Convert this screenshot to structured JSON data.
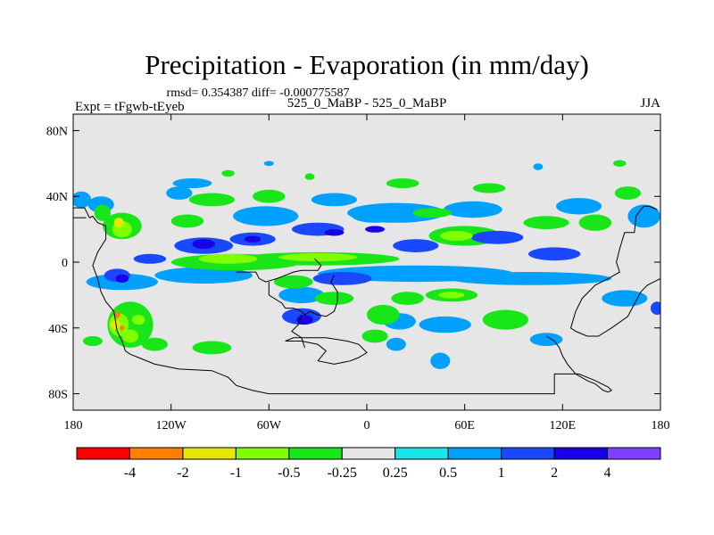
{
  "chart_data": {
    "type": "heatmap",
    "title": "Precipitation - Evaporation (in mm/day)",
    "subtitle": "rmsd= 0.354387 diff= -0.000775587",
    "left_label": "Expt = tFgwb-tEyeb",
    "center_label": "525_0_MaBP - 525_0_MaBP",
    "right_label": "JJA",
    "x_axis": {
      "range": [
        -180,
        180
      ],
      "ticks": [
        -180,
        -120,
        -60,
        0,
        60,
        120,
        180
      ],
      "tick_labels": [
        "180",
        "120W",
        "60W",
        "0",
        "60E",
        "120E",
        "180"
      ]
    },
    "y_axis": {
      "range": [
        -90,
        90
      ],
      "ticks": [
        80,
        40,
        0,
        -40,
        -80
      ],
      "tick_labels": [
        "80N",
        "40N",
        "0",
        "40S",
        "80S"
      ]
    },
    "colorbar": {
      "colors": [
        "#ff0000",
        "#ff8000",
        "#e6e600",
        "#80ff00",
        "#19e619",
        "#e6e6e6",
        "#19e6e6",
        "#00a0ff",
        "#1a48ff",
        "#1a00e6",
        "#8040ff"
      ],
      "labels": [
        "-4",
        "-2",
        "-1",
        "-0.5",
        "-0.25",
        "0.25",
        "0.5",
        "1",
        "2",
        "4"
      ]
    },
    "background_color": "#e6e6e6",
    "features": [
      {
        "level": 7,
        "lon": -175,
        "lat": 38,
        "dlon": 6,
        "dlat": 5
      },
      {
        "level": 7,
        "lon": -163,
        "lat": 35,
        "dlon": 8,
        "dlat": 5
      },
      {
        "level": 7,
        "lon": -115,
        "lat": 42,
        "dlon": 8,
        "dlat": 4
      },
      {
        "level": 7,
        "lon": -107,
        "lat": 48,
        "dlon": 12,
        "dlat": 3
      },
      {
        "level": 7,
        "lon": -62,
        "lat": 28,
        "dlon": 20,
        "dlat": 6
      },
      {
        "level": 7,
        "lon": -20,
        "lat": 38,
        "dlon": 14,
        "dlat": 4
      },
      {
        "level": 7,
        "lon": 18,
        "lat": 30,
        "dlon": 30,
        "dlat": 6
      },
      {
        "level": 7,
        "lon": 65,
        "lat": 32,
        "dlon": 18,
        "dlat": 5
      },
      {
        "level": 7,
        "lon": 130,
        "lat": 34,
        "dlon": 14,
        "dlat": 5
      },
      {
        "level": 7,
        "lon": 170,
        "lat": 28,
        "dlon": 10,
        "dlat": 7
      },
      {
        "level": 7,
        "lon": 5,
        "lat": 28,
        "dlon": 14,
        "dlat": 4
      },
      {
        "level": 7,
        "lon": -150,
        "lat": -12,
        "dlon": 22,
        "dlat": 5
      },
      {
        "level": 7,
        "lon": -100,
        "lat": -8,
        "dlon": 30,
        "dlat": 5
      },
      {
        "level": 7,
        "lon": -40,
        "lat": -20,
        "dlon": 14,
        "dlat": 5
      },
      {
        "level": 7,
        "lon": 30,
        "lat": -7,
        "dlon": 60,
        "dlat": 5
      },
      {
        "level": 7,
        "lon": 100,
        "lat": -10,
        "dlon": 50,
        "dlat": 4
      },
      {
        "level": 7,
        "lon": 158,
        "lat": -22,
        "dlon": 14,
        "dlat": 5
      },
      {
        "level": 7,
        "lon": -152,
        "lat": -35,
        "dlon": 6,
        "dlat": 4
      },
      {
        "level": 7,
        "lon": 20,
        "lat": -36,
        "dlon": 10,
        "dlat": 5
      },
      {
        "level": 7,
        "lon": 48,
        "lat": -38,
        "dlon": 16,
        "dlat": 5
      },
      {
        "level": 7,
        "lon": 110,
        "lat": -47,
        "dlon": 10,
        "dlat": 4
      },
      {
        "level": 7,
        "lon": 45,
        "lat": -60,
        "dlon": 6,
        "dlat": 5
      },
      {
        "level": 7,
        "lon": 18,
        "lat": -50,
        "dlon": 6,
        "dlat": 4
      },
      {
        "level": 7,
        "lon": 105,
        "lat": 58,
        "dlon": 3,
        "dlat": 2
      },
      {
        "level": 7,
        "lon": -60,
        "lat": 60,
        "dlon": 3,
        "dlat": 1.5
      },
      {
        "level": 8,
        "lon": -100,
        "lat": 10,
        "dlon": 18,
        "dlat": 5
      },
      {
        "level": 8,
        "lon": -153,
        "lat": -8,
        "dlon": 8,
        "dlat": 4
      },
      {
        "level": 8,
        "lon": -70,
        "lat": 14,
        "dlon": 14,
        "dlat": 4
      },
      {
        "level": 8,
        "lon": -30,
        "lat": 20,
        "dlon": 16,
        "dlat": 4
      },
      {
        "level": 8,
        "lon": -15,
        "lat": -10,
        "dlon": 18,
        "dlat": 4
      },
      {
        "level": 8,
        "lon": -40,
        "lat": -33,
        "dlon": 12,
        "dlat": 5
      },
      {
        "level": 8,
        "lon": 80,
        "lat": 15,
        "dlon": 16,
        "dlat": 4
      },
      {
        "level": 8,
        "lon": 30,
        "lat": 10,
        "dlon": 14,
        "dlat": 4
      },
      {
        "level": 8,
        "lon": 115,
        "lat": 5,
        "dlon": 16,
        "dlat": 4
      },
      {
        "level": 8,
        "lon": -133,
        "lat": 2,
        "dlon": 10,
        "dlat": 3
      },
      {
        "level": 8,
        "lon": 178,
        "lat": -28,
        "dlon": 4,
        "dlat": 4
      },
      {
        "level": 9,
        "lon": -100,
        "lat": 11,
        "dlon": 7,
        "dlat": 3
      },
      {
        "level": 9,
        "lon": -150,
        "lat": -10,
        "dlon": 4,
        "dlat": 2.5
      },
      {
        "level": 9,
        "lon": -38,
        "lat": -35,
        "dlon": 5,
        "dlat": 3
      },
      {
        "level": 9,
        "lon": 5,
        "lat": 20,
        "dlon": 6,
        "dlat": 2
      },
      {
        "level": 9,
        "lon": -20,
        "lat": 18,
        "dlon": 6,
        "dlat": 2
      },
      {
        "level": 9,
        "lon": -70,
        "lat": 14,
        "dlon": 5,
        "dlat": 2
      },
      {
        "level": 4,
        "lon": -150,
        "lat": 22,
        "dlon": 12,
        "dlat": 8
      },
      {
        "level": 4,
        "lon": -162,
        "lat": 30,
        "dlon": 5,
        "dlat": 5
      },
      {
        "level": 4,
        "lon": -80,
        "lat": 0,
        "dlon": 40,
        "dlat": 5
      },
      {
        "level": 4,
        "lon": -30,
        "lat": 2,
        "dlon": 50,
        "dlat": 4
      },
      {
        "level": 4,
        "lon": 60,
        "lat": 16,
        "dlon": 22,
        "dlat": 6
      },
      {
        "level": 4,
        "lon": 110,
        "lat": 24,
        "dlon": 14,
        "dlat": 4
      },
      {
        "level": 4,
        "lon": -95,
        "lat": 38,
        "dlon": 14,
        "dlat": 4
      },
      {
        "level": 4,
        "lon": -145,
        "lat": -38,
        "dlon": 14,
        "dlat": 14
      },
      {
        "level": 4,
        "lon": 10,
        "lat": -32,
        "dlon": 10,
        "dlat": 6
      },
      {
        "level": 4,
        "lon": 52,
        "lat": -20,
        "dlon": 16,
        "dlat": 4
      },
      {
        "level": 4,
        "lon": -20,
        "lat": -22,
        "dlon": 12,
        "dlat": 4
      },
      {
        "level": 4,
        "lon": -45,
        "lat": -12,
        "dlon": 12,
        "dlat": 4
      },
      {
        "level": 4,
        "lon": 85,
        "lat": -35,
        "dlon": 14,
        "dlat": 6
      },
      {
        "level": 4,
        "lon": -95,
        "lat": -52,
        "dlon": 12,
        "dlat": 4
      },
      {
        "level": 4,
        "lon": -130,
        "lat": -50,
        "dlon": 8,
        "dlat": 4
      },
      {
        "level": 4,
        "lon": -168,
        "lat": -48,
        "dlon": 6,
        "dlat": 3
      },
      {
        "level": 4,
        "lon": 22,
        "lat": 48,
        "dlon": 10,
        "dlat": 3
      },
      {
        "level": 4,
        "lon": 75,
        "lat": 45,
        "dlon": 10,
        "dlat": 3
      },
      {
        "level": 4,
        "lon": 160,
        "lat": 42,
        "dlon": 8,
        "dlat": 4
      },
      {
        "level": 4,
        "lon": -110,
        "lat": 25,
        "dlon": 10,
        "dlat": 4
      },
      {
        "level": 4,
        "lon": -60,
        "lat": 40,
        "dlon": 10,
        "dlat": 4
      },
      {
        "level": 4,
        "lon": 5,
        "lat": -45,
        "dlon": 8,
        "dlat": 4
      },
      {
        "level": 4,
        "lon": 25,
        "lat": -22,
        "dlon": 10,
        "dlat": 4
      },
      {
        "level": 4,
        "lon": 140,
        "lat": 24,
        "dlon": 10,
        "dlat": 5
      },
      {
        "level": 4,
        "lon": 40,
        "lat": 30,
        "dlon": 12,
        "dlat": 3
      },
      {
        "level": 4,
        "lon": -85,
        "lat": 54,
        "dlon": 4,
        "dlat": 2
      },
      {
        "level": 4,
        "lon": -35,
        "lat": 52,
        "dlon": 3,
        "dlat": 2
      },
      {
        "level": 4,
        "lon": 155,
        "lat": 60,
        "dlon": 4,
        "dlat": 2
      },
      {
        "level": 3,
        "lon": -150,
        "lat": 20,
        "dlon": 6,
        "dlat": 5
      },
      {
        "level": 3,
        "lon": -152,
        "lat": -38,
        "dlon": 6,
        "dlat": 7
      },
      {
        "level": 3,
        "lon": -85,
        "lat": 2,
        "dlon": 18,
        "dlat": 3
      },
      {
        "level": 3,
        "lon": -30,
        "lat": 3,
        "dlon": 24,
        "dlat": 2.5
      },
      {
        "level": 3,
        "lon": 55,
        "lat": 16,
        "dlon": 10,
        "dlat": 3
      },
      {
        "level": 3,
        "lon": 52,
        "lat": -20,
        "dlon": 8,
        "dlat": 2
      },
      {
        "level": 3,
        "lon": -145,
        "lat": -45,
        "dlon": 5,
        "dlat": 4
      },
      {
        "level": 3,
        "lon": -140,
        "lat": -35,
        "dlon": 4,
        "dlat": 3
      },
      {
        "level": 2,
        "lon": -152,
        "lat": 24,
        "dlon": 3,
        "dlat": 3
      },
      {
        "level": 2,
        "lon": -154,
        "lat": -38,
        "dlon": 3,
        "dlat": 3
      },
      {
        "level": 1,
        "lon": -153,
        "lat": -32,
        "dlon": 2,
        "dlat": 2
      },
      {
        "level": 1,
        "lon": -150,
        "lat": -40,
        "dlon": 1.5,
        "dlat": 1.5
      }
    ],
    "coastlines": [
      [
        [
          -180,
          33
        ],
        [
          -173,
          33
        ],
        [
          -170,
          27
        ],
        [
          -168,
          28
        ],
        [
          -165,
          24
        ],
        [
          -160,
          22
        ],
        [
          -160,
          14
        ],
        [
          -165,
          6
        ],
        [
          -168,
          -2
        ],
        [
          -165,
          -10
        ],
        [
          -163,
          -18
        ],
        [
          -160,
          -24
        ],
        [
          -155,
          -30
        ],
        [
          -153,
          -42
        ],
        [
          -150,
          -48
        ],
        [
          -148,
          -54
        ],
        [
          -145,
          -56
        ],
        [
          -140,
          -58
        ],
        [
          -130,
          -62
        ],
        [
          -115,
          -65
        ],
        [
          -95,
          -66
        ],
        [
          -85,
          -70
        ],
        [
          -80,
          -75
        ],
        [
          -70,
          -78
        ],
        [
          -60,
          -80
        ],
        [
          -20,
          -80
        ],
        [
          0,
          -80
        ],
        [
          20,
          -80
        ],
        [
          70,
          -80
        ],
        [
          90,
          -80
        ],
        [
          100,
          -80
        ],
        [
          115,
          -80
        ],
        [
          115,
          -68
        ],
        [
          130,
          -68
        ],
        [
          140,
          -72
        ],
        [
          148,
          -76
        ],
        [
          150,
          -78
        ],
        [
          148,
          -79
        ],
        [
          145,
          -78
        ],
        [
          140,
          -74
        ],
        [
          135,
          -72
        ],
        [
          128,
          -68
        ],
        [
          123,
          -62
        ],
        [
          120,
          -57
        ],
        [
          118,
          -52
        ],
        [
          115,
          -48
        ],
        [
          110,
          -45
        ]
      ],
      [
        [
          178,
          32
        ],
        [
          173,
          34
        ],
        [
          170,
          34
        ],
        [
          168,
          32
        ],
        [
          165,
          28
        ],
        [
          164,
          18
        ],
        [
          158,
          18
        ],
        [
          155,
          8
        ],
        [
          153,
          0
        ],
        [
          155,
          -6
        ],
        [
          148,
          -10
        ],
        [
          140,
          -14
        ],
        [
          132,
          -22
        ],
        [
          128,
          -30
        ],
        [
          125,
          -40
        ],
        [
          128,
          -42
        ],
        [
          135,
          -45
        ],
        [
          142,
          -45
        ],
        [
          150,
          -40
        ],
        [
          160,
          -33
        ],
        [
          168,
          -18
        ],
        [
          172,
          -14
        ],
        [
          176,
          -12
        ],
        [
          180,
          -10
        ]
      ],
      [
        [
          -180,
          27
        ],
        [
          -172,
          27
        ]
      ],
      [
        [
          -80,
          -6
        ],
        [
          -68,
          -6
        ],
        [
          -66,
          -10
        ],
        [
          -62,
          -12
        ],
        [
          -55,
          -10
        ],
        [
          -50,
          -8
        ],
        [
          -45,
          -6
        ],
        [
          -40,
          -5
        ],
        [
          -30,
          -5
        ],
        [
          -28,
          -2
        ],
        [
          -32,
          2
        ]
      ],
      [
        [
          -60,
          -12
        ],
        [
          -60,
          -20
        ],
        [
          -52,
          -25
        ],
        [
          -50,
          -28
        ],
        [
          -45,
          -28
        ],
        [
          -40,
          -30
        ],
        [
          -38,
          -32
        ],
        [
          -35,
          -30
        ],
        [
          -30,
          -32
        ],
        [
          -25,
          -33
        ],
        [
          -20,
          -30
        ],
        [
          -18,
          -24
        ],
        [
          -18,
          -18
        ],
        [
          -22,
          -12
        ],
        [
          -20,
          -8
        ]
      ],
      [
        [
          -40,
          -32
        ],
        [
          -42,
          -38
        ],
        [
          -46,
          -42
        ],
        [
          -40,
          -46
        ],
        [
          -38,
          -52
        ]
      ],
      [
        [
          -50,
          -48
        ],
        [
          -40,
          -48
        ],
        [
          -30,
          -50
        ],
        [
          -25,
          -54
        ],
        [
          -30,
          -60
        ],
        [
          -20,
          -62
        ],
        [
          -10,
          -60
        ],
        [
          -5,
          -58
        ],
        [
          0,
          -55
        ],
        [
          -5,
          -50
        ],
        [
          -12,
          -48
        ],
        [
          -25,
          -46
        ],
        [
          -35,
          -46
        ],
        [
          -45,
          -46
        ],
        [
          -50,
          -48
        ]
      ]
    ]
  }
}
